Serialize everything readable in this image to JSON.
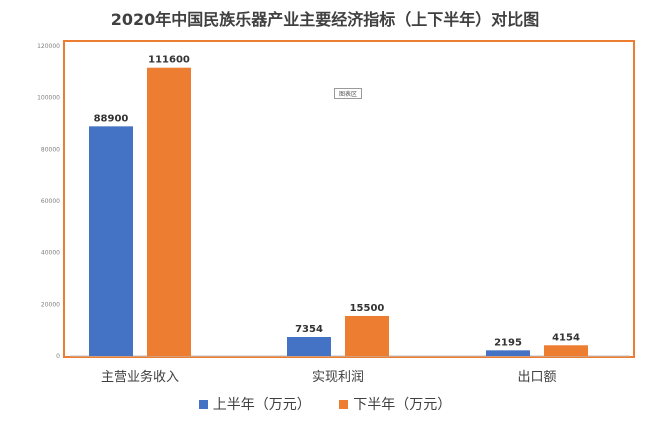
{
  "chart_data": {
    "type": "bar",
    "title": "2020年中国民族乐器产业主要经济指标（上下半年）对比图",
    "categories": [
      "主营业务收入",
      "实现利润",
      "出口额"
    ],
    "series": [
      {
        "name": "上半年（万元）",
        "values": [
          88900,
          7354,
          2195
        ],
        "color": "#4472c4"
      },
      {
        "name": "下半年（万元）",
        "values": [
          111600,
          15500,
          4154
        ],
        "color": "#ed7d31"
      }
    ],
    "ylim": [
      0,
      120000
    ],
    "yticks": [
      0,
      20000,
      40000,
      60000,
      80000,
      100000,
      120000
    ],
    "grid": false,
    "legend_position": "bottom",
    "frame_color": "#ed7d31",
    "badge_text": "图表区"
  }
}
